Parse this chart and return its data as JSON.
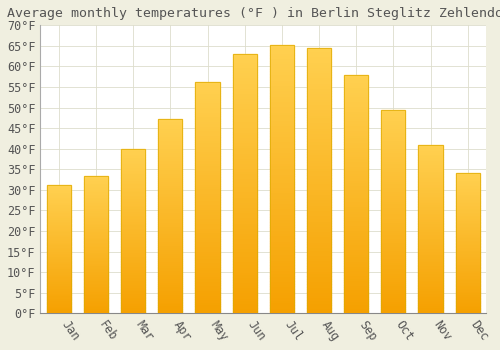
{
  "title": "Average monthly temperatures (°F ) in Berlin Steglitz Zehlendorf",
  "months": [
    "Jan",
    "Feb",
    "Mar",
    "Apr",
    "May",
    "Jun",
    "Jul",
    "Aug",
    "Sep",
    "Oct",
    "Nov",
    "Dec"
  ],
  "values": [
    31.1,
    33.3,
    40.0,
    47.3,
    56.3,
    63.0,
    65.3,
    64.4,
    57.9,
    49.5,
    40.8,
    34.2
  ],
  "bar_color_top": "#FFD050",
  "bar_color_bottom": "#F5A000",
  "bar_edge_color": "#DDAA00",
  "background_color": "#F0EFE0",
  "plot_bg_color": "#FFFFFF",
  "grid_color": "#DDDDCC",
  "text_color": "#555555",
  "ylim": [
    0,
    70
  ],
  "ytick_step": 5,
  "title_fontsize": 9.5,
  "tick_fontsize": 8.5,
  "font_family": "monospace"
}
